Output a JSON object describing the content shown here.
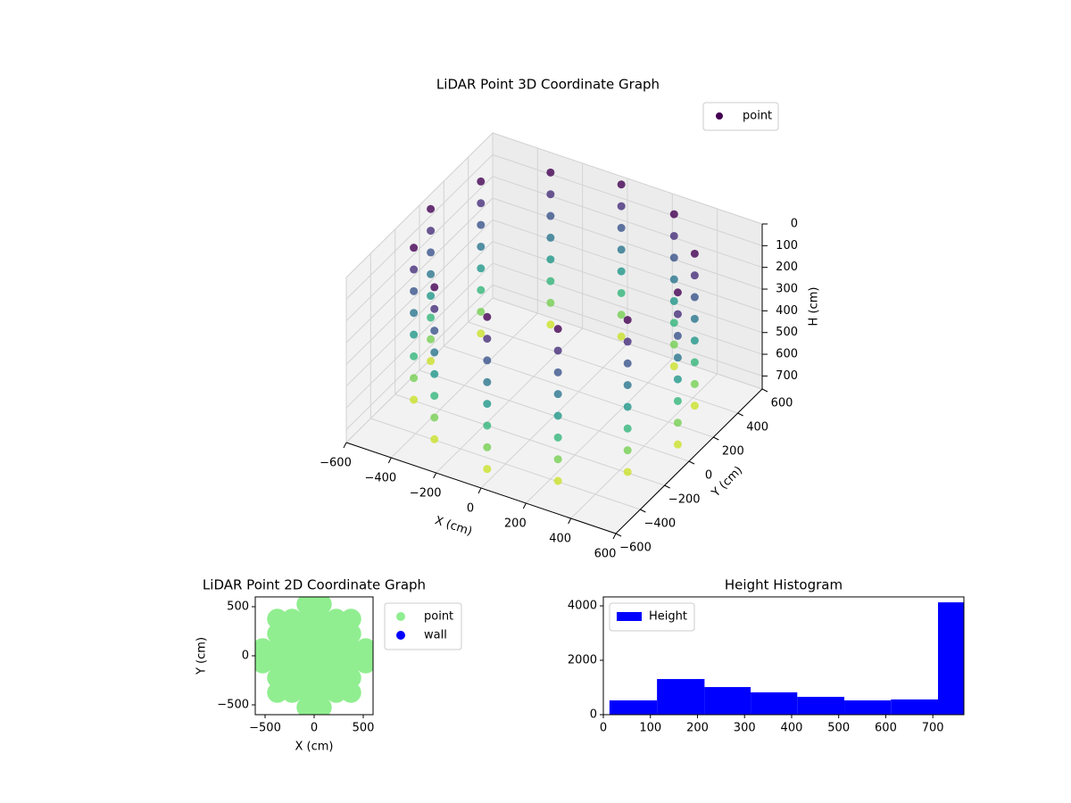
{
  "chart_data": [
    {
      "type": "scatter3d",
      "title": "LiDAR Point 3D Coordinate Graph",
      "xlabel": "X (cm)",
      "ylabel": "Y (cm)",
      "zlabel": "H (cm)",
      "xlim": [
        -600,
        600
      ],
      "ylim": [
        -600,
        600
      ],
      "zlim": [
        0,
        760
      ],
      "zinverted": true,
      "xticks": [
        {
          "value": -600,
          "label": "−600"
        },
        {
          "value": -400,
          "label": "−400"
        },
        {
          "value": -200,
          "label": "−200"
        },
        0,
        200,
        400,
        600
      ],
      "yticks": [
        {
          "value": -600,
          "label": "−600"
        },
        {
          "value": -400,
          "label": "−400"
        },
        {
          "value": -200,
          "label": "−200"
        },
        0,
        200,
        400,
        600
      ],
      "zticks": [
        0,
        100,
        200,
        300,
        400,
        500,
        600,
        700
      ],
      "colormap": "viridis",
      "legend": "upper right",
      "grid": true,
      "series": [
        {
          "name": "point",
          "color": "#440154",
          "x": [
            -275,
            -275,
            -275,
            -275,
            -275,
            -275,
            -275,
            -275,
            -476,
            -476,
            -476,
            -476,
            -476,
            -476,
            -476,
            -476,
            0,
            0,
            0,
            0,
            0,
            0,
            0,
            0,
            -550,
            -550,
            -550,
            -550,
            -550,
            -550,
            -550,
            -550,
            275,
            275,
            275,
            275,
            275,
            275,
            275,
            275,
            -476,
            -476,
            -476,
            -476,
            -476,
            -476,
            -476,
            -476,
            476,
            476,
            476,
            476,
            476,
            476,
            476,
            476,
            -275,
            -275,
            -275,
            -275,
            -275,
            -275,
            -275,
            -275,
            550,
            550,
            550,
            550,
            550,
            550,
            550,
            550,
            0,
            0,
            0,
            0,
            0,
            0,
            0,
            0,
            275,
            275,
            275,
            275,
            275,
            275,
            275,
            275,
            476,
            476,
            476,
            476,
            476,
            476,
            476,
            476
          ],
          "y": [
            476,
            476,
            476,
            476,
            476,
            476,
            476,
            476,
            275,
            275,
            275,
            275,
            275,
            275,
            275,
            275,
            550,
            550,
            550,
            550,
            550,
            550,
            550,
            550,
            0,
            0,
            0,
            0,
            0,
            0,
            0,
            0,
            476,
            476,
            476,
            476,
            476,
            476,
            476,
            476,
            -275,
            -275,
            -275,
            -275,
            -275,
            -275,
            -275,
            -275,
            275,
            275,
            275,
            275,
            275,
            275,
            275,
            275,
            -476,
            -476,
            -476,
            -476,
            -476,
            -476,
            -476,
            -476,
            0,
            0,
            0,
            0,
            0,
            0,
            0,
            0,
            -550,
            -550,
            -550,
            -550,
            -550,
            -550,
            -550,
            -550,
            -476,
            -476,
            -476,
            -476,
            -476,
            -476,
            -476,
            -476,
            -275,
            -275,
            -275,
            -275,
            -275,
            -275,
            -275,
            -275
          ],
          "z": [
            0,
            100,
            200,
            300,
            400,
            500,
            600,
            700,
            0,
            100,
            200,
            300,
            400,
            500,
            600,
            700,
            0,
            100,
            200,
            300,
            400,
            500,
            600,
            700,
            0,
            100,
            200,
            300,
            400,
            500,
            600,
            700,
            0,
            100,
            200,
            300,
            400,
            500,
            600,
            700,
            0,
            100,
            200,
            300,
            400,
            500,
            600,
            700,
            0,
            100,
            200,
            300,
            400,
            500,
            600,
            700,
            0,
            100,
            200,
            300,
            400,
            500,
            600,
            700,
            0,
            100,
            200,
            300,
            400,
            500,
            600,
            700,
            0,
            100,
            200,
            300,
            400,
            500,
            600,
            700,
            0,
            100,
            200,
            300,
            400,
            500,
            600,
            700,
            0,
            100,
            200,
            300,
            400,
            500,
            600,
            700
          ]
        }
      ]
    },
    {
      "type": "scatter",
      "title": "LiDAR Point 2D Coordinate Graph",
      "xlabel": "X (cm)",
      "ylabel": "Y (cm)",
      "xlim": [
        -600,
        600
      ],
      "ylim": [
        -600,
        600
      ],
      "xticks": [
        {
          "value": -500,
          "label": "−500"
        },
        0,
        500
      ],
      "yticks": [
        {
          "value": -500,
          "label": "−500"
        },
        0,
        500
      ],
      "legend": "outside upper right",
      "series": [
        {
          "name": "point",
          "color": "#90ee90",
          "x": [
            -75,
            75,
            -375,
            -225,
            -75,
            75,
            225,
            375,
            -375,
            -225,
            -75,
            75,
            225,
            375,
            -525,
            -375,
            -225,
            -75,
            75,
            225,
            375,
            525,
            -525,
            -375,
            -225,
            -75,
            75,
            225,
            375,
            525,
            -375,
            -225,
            -75,
            75,
            225,
            375,
            -375,
            -225,
            -75,
            75,
            225,
            375,
            -75,
            75
          ],
          "y": [
            -525,
            -525,
            -375,
            -375,
            -375,
            -375,
            -375,
            -375,
            -225,
            -225,
            -225,
            -225,
            -225,
            -225,
            -75,
            -75,
            -75,
            -75,
            -75,
            -75,
            -75,
            -75,
            75,
            75,
            75,
            75,
            75,
            75,
            75,
            75,
            225,
            225,
            225,
            225,
            225,
            225,
            375,
            375,
            375,
            375,
            375,
            375,
            525,
            525
          ]
        },
        {
          "name": "wall",
          "color": "#0000ff",
          "x": [],
          "y": []
        }
      ]
    },
    {
      "type": "histogram",
      "title": "Height Histogram",
      "name": "Height",
      "color": "#0000ff",
      "bins": [
        13,
        114,
        215,
        313,
        412,
        512,
        611,
        711,
        766
      ],
      "values": [
        525,
        1310,
        1015,
        820,
        655,
        525,
        560,
        4130
      ],
      "xlim": [
        0,
        766
      ],
      "ylim": [
        0,
        4330
      ],
      "xticks": [
        0,
        100,
        200,
        300,
        400,
        500,
        600,
        700
      ],
      "yticks": [
        0,
        2000,
        4000
      ],
      "legend": "upper left"
    }
  ]
}
